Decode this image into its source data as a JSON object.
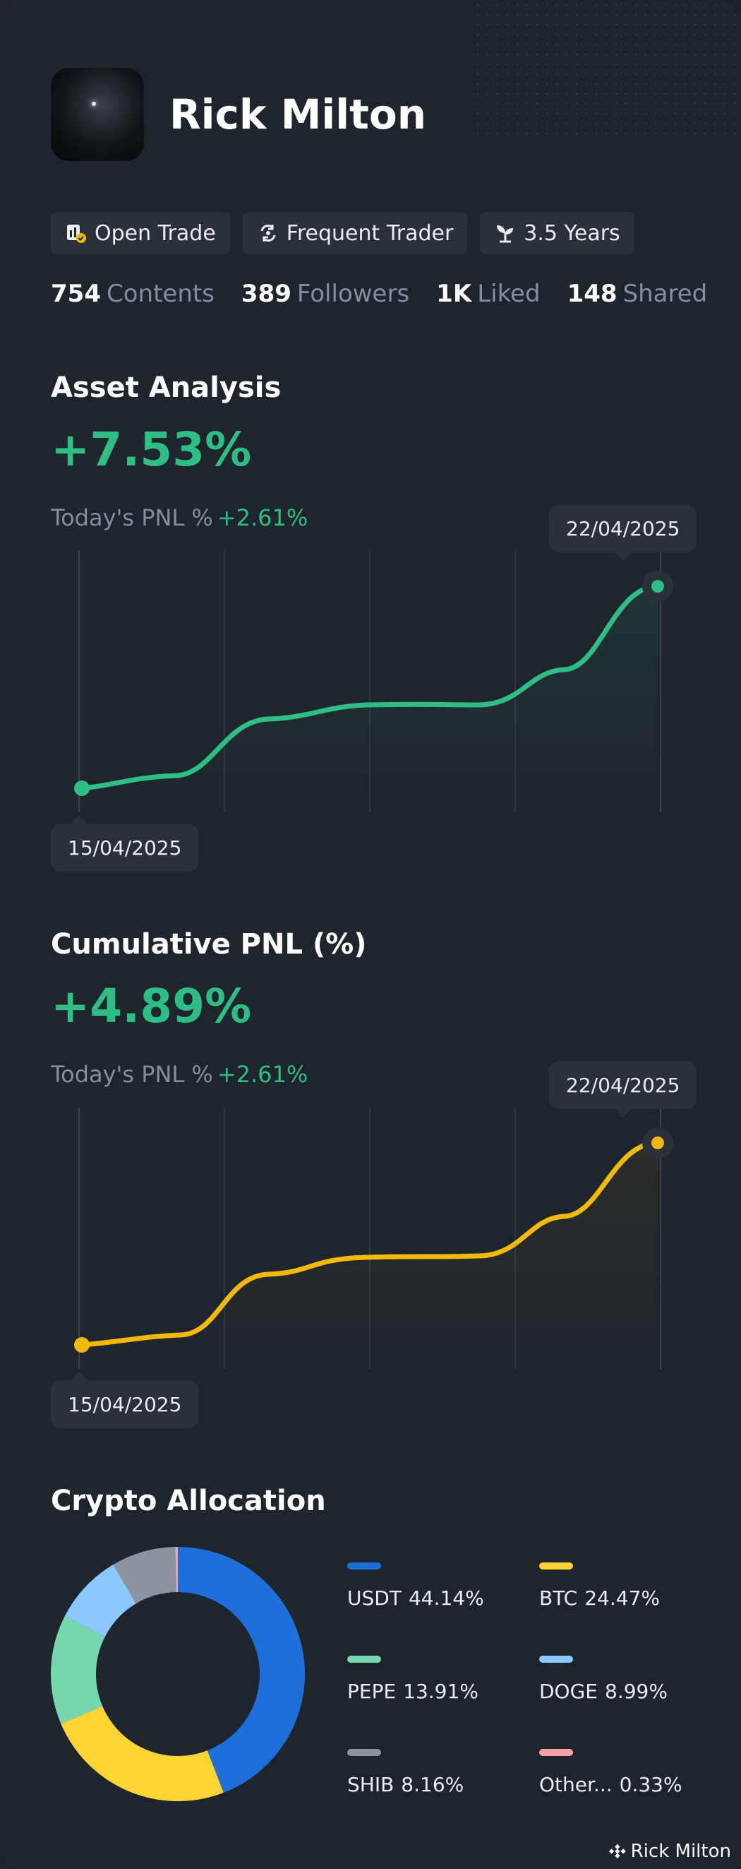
{
  "profile": {
    "name": "Rick Milton",
    "badges": [
      {
        "label": "Open Trade",
        "icon": "open-trade-icon"
      },
      {
        "label": "Frequent Trader",
        "icon": "refresh-icon"
      },
      {
        "label": "3.5 Years",
        "icon": "sprout-icon"
      }
    ],
    "stats": [
      {
        "value": "754",
        "label": "Contents"
      },
      {
        "value": "389",
        "label": "Followers"
      },
      {
        "value": "1K",
        "label": "Liked"
      },
      {
        "value": "148",
        "label": "Shared"
      }
    ]
  },
  "asset_analysis": {
    "title": "Asset Analysis",
    "value": "+7.53%",
    "pnl_label": "Today's PNL %",
    "pnl_value": "+2.61%",
    "start_date": "15/04/2025",
    "end_date": "22/04/2025",
    "color": "#2ebd85"
  },
  "cumulative_pnl": {
    "title": "Cumulative PNL (%)",
    "value": "+4.89%",
    "pnl_label": "Today's PNL %",
    "pnl_value": "+2.61%",
    "start_date": "15/04/2025",
    "end_date": "22/04/2025",
    "color": "#f0b90b"
  },
  "allocation": {
    "title": "Crypto Allocation",
    "items": [
      {
        "name": "USDT",
        "pct": "44.14%",
        "value": 44.14,
        "color": "#1e6fd9"
      },
      {
        "name": "BTC",
        "pct": "24.47%",
        "value": 24.47,
        "color": "#fcd535"
      },
      {
        "name": "PEPE",
        "pct": "13.91%",
        "value": 13.91,
        "color": "#76d7ae"
      },
      {
        "name": "DOGE",
        "pct": "8.99%",
        "value": 8.99,
        "color": "#8cc8ff"
      },
      {
        "name": "SHIB",
        "pct": "8.16%",
        "value": 8.16,
        "color": "#8a939e"
      },
      {
        "name": "Other...",
        "pct": "0.33%",
        "value": 0.33,
        "color": "#f6a0a8"
      }
    ]
  },
  "watermark": "Rick Milton"
}
